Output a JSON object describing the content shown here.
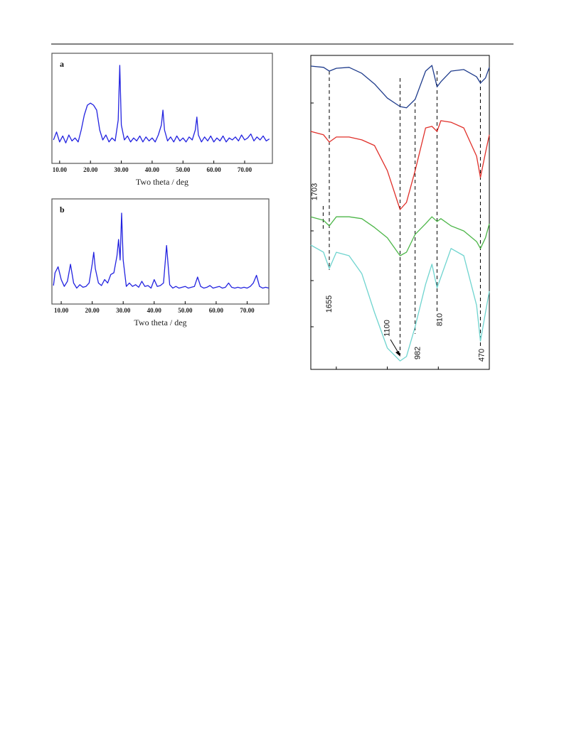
{
  "chart_data": [
    {
      "type": "line",
      "title": "a",
      "x_label": "Two theta / deg",
      "color": "#2323e0",
      "x": [
        8,
        9,
        10,
        11,
        12,
        13,
        14,
        15,
        16,
        17,
        18,
        19,
        20,
        21,
        22,
        23,
        24,
        25,
        26,
        27,
        28,
        29,
        29.5,
        30,
        31,
        32,
        33,
        34,
        35,
        36,
        37,
        38,
        39,
        40,
        41,
        42,
        43,
        43.5,
        44,
        45,
        46,
        47,
        48,
        49,
        50,
        51,
        52,
        53,
        54,
        54.5,
        55,
        56,
        57,
        58,
        59,
        60,
        61,
        62,
        63,
        64,
        65,
        66,
        67,
        68,
        69,
        70,
        71,
        72,
        73,
        74,
        75,
        76,
        77,
        78
      ],
      "values": [
        20,
        28,
        18,
        24,
        17,
        25,
        19,
        22,
        18,
        30,
        45,
        55,
        57,
        55,
        50,
        30,
        20,
        25,
        18,
        22,
        19,
        40,
        95,
        35,
        20,
        24,
        18,
        22,
        19,
        24,
        18,
        23,
        19,
        22,
        18,
        25,
        35,
        50,
        30,
        19,
        23,
        18,
        24,
        19,
        22,
        18,
        23,
        20,
        30,
        43,
        25,
        18,
        23,
        19,
        24,
        18,
        22,
        19,
        24,
        18,
        22,
        20,
        23,
        19,
        25,
        20,
        22,
        26,
        19,
        23,
        20,
        24,
        19,
        21
      ],
      "xlim": [
        7.5,
        79
      ],
      "ylim": [
        0,
        100
      ],
      "xticks": [
        {
          "value": 10,
          "label": "10.00"
        },
        {
          "value": 20,
          "label": "20.00"
        },
        {
          "value": 30,
          "label": "30.00"
        },
        {
          "value": 40,
          "label": "40.00"
        },
        {
          "value": 50,
          "label": "50.00"
        },
        {
          "value": 60,
          "label": "60.00"
        },
        {
          "value": 70,
          "label": "70.00"
        }
      ]
    },
    {
      "type": "line",
      "title": "b",
      "x_label": "Two theta / deg",
      "color": "#2323e0",
      "x": [
        7.5,
        8,
        9,
        10,
        11,
        12,
        13,
        14,
        15,
        16,
        17,
        18,
        19,
        20,
        20.5,
        21,
        22,
        23,
        24,
        25,
        26,
        27,
        28,
        28.5,
        29,
        29.5,
        30,
        31,
        32,
        33,
        34,
        35,
        36,
        37,
        38,
        39,
        40,
        41,
        42,
        43,
        44,
        45,
        46,
        47,
        48,
        49,
        50,
        51,
        52,
        53,
        54,
        55,
        56,
        57,
        58,
        59,
        60,
        61,
        62,
        63,
        64,
        65,
        66,
        67,
        68,
        69,
        70,
        71,
        72,
        73,
        74,
        75,
        76,
        77
      ],
      "values": [
        15,
        30,
        37,
        22,
        14,
        20,
        40,
        18,
        12,
        16,
        13,
        14,
        18,
        40,
        54,
        35,
        18,
        15,
        22,
        18,
        28,
        30,
        50,
        69,
        45,
        100,
        45,
        14,
        18,
        14,
        16,
        13,
        20,
        14,
        15,
        12,
        22,
        14,
        15,
        18,
        62,
        16,
        12,
        14,
        12,
        13,
        14,
        12,
        13,
        14,
        25,
        14,
        12,
        13,
        15,
        12,
        13,
        14,
        12,
        13,
        18,
        13,
        12,
        13,
        12,
        13,
        12,
        14,
        18,
        27,
        14,
        12,
        13,
        12
      ],
      "xlim": [
        7,
        77
      ],
      "ylim": [
        0,
        100
      ],
      "xticks": [
        {
          "value": 10,
          "label": "10.00"
        },
        {
          "value": 20,
          "label": "20.00"
        },
        {
          "value": 30,
          "label": "30.00"
        },
        {
          "value": 40,
          "label": "40.00"
        },
        {
          "value": 50,
          "label": "50.00"
        },
        {
          "value": 60,
          "label": "60.00"
        },
        {
          "value": 70,
          "label": "70.00"
        }
      ]
    },
    {
      "type": "line",
      "x": [
        1800,
        1700,
        1655,
        1600,
        1500,
        1400,
        1300,
        1200,
        1100,
        1050,
        982,
        900,
        850,
        810,
        780,
        700,
        600,
        500,
        470,
        430,
        400
      ],
      "series": [
        {
          "color": "#1f3c8c",
          "values": [
            96.6,
            96.2,
            95,
            95.9,
            96.2,
            94.3,
            90.9,
            86.4,
            83.7,
            83.3,
            86,
            95,
            96.8,
            90,
            91.6,
            95,
            95.5,
            93.2,
            91.2,
            92.8,
            96.2
          ]
        },
        {
          "color": "#e0302a",
          "values": [
            75.8,
            74.7,
            72.4,
            74,
            74,
            73.1,
            71.3,
            63.3,
            50.9,
            53.2,
            63.3,
            76.9,
            77.4,
            75.8,
            79.2,
            78.7,
            76.9,
            67.9,
            61.1,
            69,
            74.7
          ]
        },
        {
          "color": "#4cb648",
          "values": [
            48.6,
            47.5,
            45.7,
            48.6,
            48.6,
            48,
            45.2,
            41.9,
            36.2,
            37.3,
            43,
            46.4,
            48.6,
            47.1,
            48,
            45.7,
            44.1,
            40.7,
            38.5,
            41.9,
            46.4
          ]
        },
        {
          "color": "#6fd4cf",
          "values": [
            39.6,
            37.3,
            32.1,
            37.3,
            36.2,
            30.5,
            18.1,
            6.8,
            2.7,
            4.1,
            13.6,
            27.1,
            33.5,
            26,
            29.4,
            38.5,
            36.2,
            20.4,
            9,
            18.1,
            24.9
          ]
        }
      ],
      "xlim": [
        1800,
        400
      ],
      "ylim": [
        0,
        100
      ],
      "xticks": [
        1600,
        1200,
        800,
        400
      ],
      "annotations": [
        1703,
        1655,
        1100,
        982,
        810,
        470
      ]
    }
  ]
}
